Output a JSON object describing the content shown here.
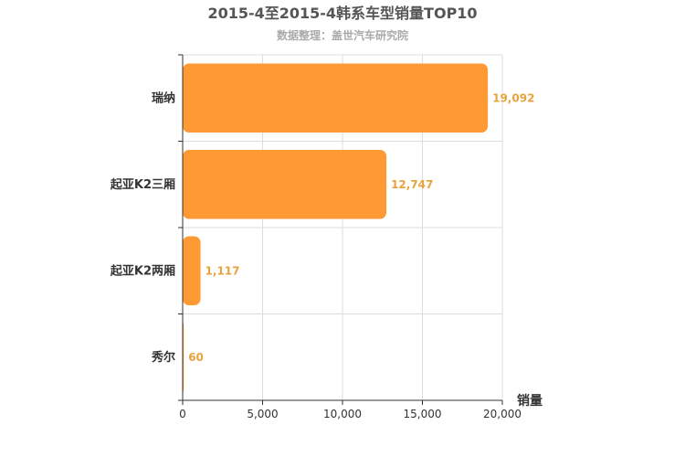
{
  "chart_data": {
    "type": "bar",
    "orientation": "horizontal",
    "title": "2015-4至2015-4韩系车型销量TOP10",
    "subtitle": "数据整理：盖世汽车研究院",
    "xlabel": "销量",
    "ylabel": "",
    "categories": [
      "瑞纳",
      "起亚K2三厢",
      "起亚K2两厢",
      "秀尔"
    ],
    "values": [
      19092,
      12747,
      1117,
      60
    ],
    "value_labels": [
      "19,092",
      "12,747",
      "1,117",
      "60"
    ],
    "xlim": [
      0,
      20000
    ],
    "x_ticks": [
      0,
      5000,
      10000,
      15000,
      20000
    ],
    "x_tick_labels": [
      "0",
      "5,000",
      "10,000",
      "15,000",
      "20,000"
    ],
    "grid": true,
    "bar_color": "#ff9933",
    "label_color": "#e8a33d"
  }
}
